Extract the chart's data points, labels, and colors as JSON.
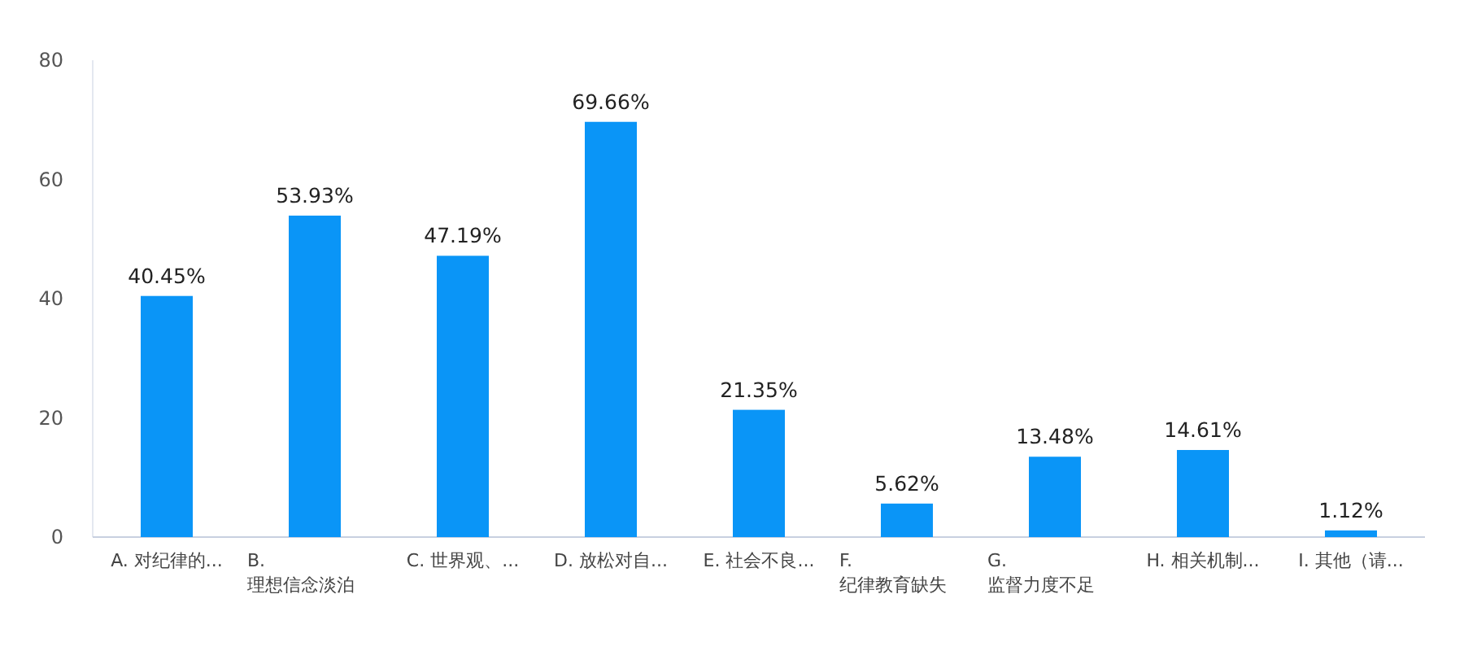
{
  "chart_data": {
    "type": "bar",
    "categories": [
      "A. 对纪律的...",
      "B. 理想信念淡泊",
      "C. 世界观、...",
      "D. 放松对自...",
      "E. 社会不良...",
      "F. 纪律教育缺失",
      "G. 监督力度不足",
      "H. 相关机制...",
      "I. 其他（请..."
    ],
    "values": [
      40.45,
      53.93,
      47.19,
      69.66,
      21.35,
      5.62,
      13.48,
      14.61,
      1.12
    ],
    "value_labels": [
      "40.45%",
      "53.93%",
      "47.19%",
      "69.66%",
      "21.35%",
      "5.62%",
      "13.48%",
      "14.61%",
      "1.12%"
    ],
    "color": "#0a95f7",
    "ylim": [
      0,
      80
    ],
    "yticks": [
      0,
      20,
      40,
      60,
      80
    ],
    "grid": false
  }
}
